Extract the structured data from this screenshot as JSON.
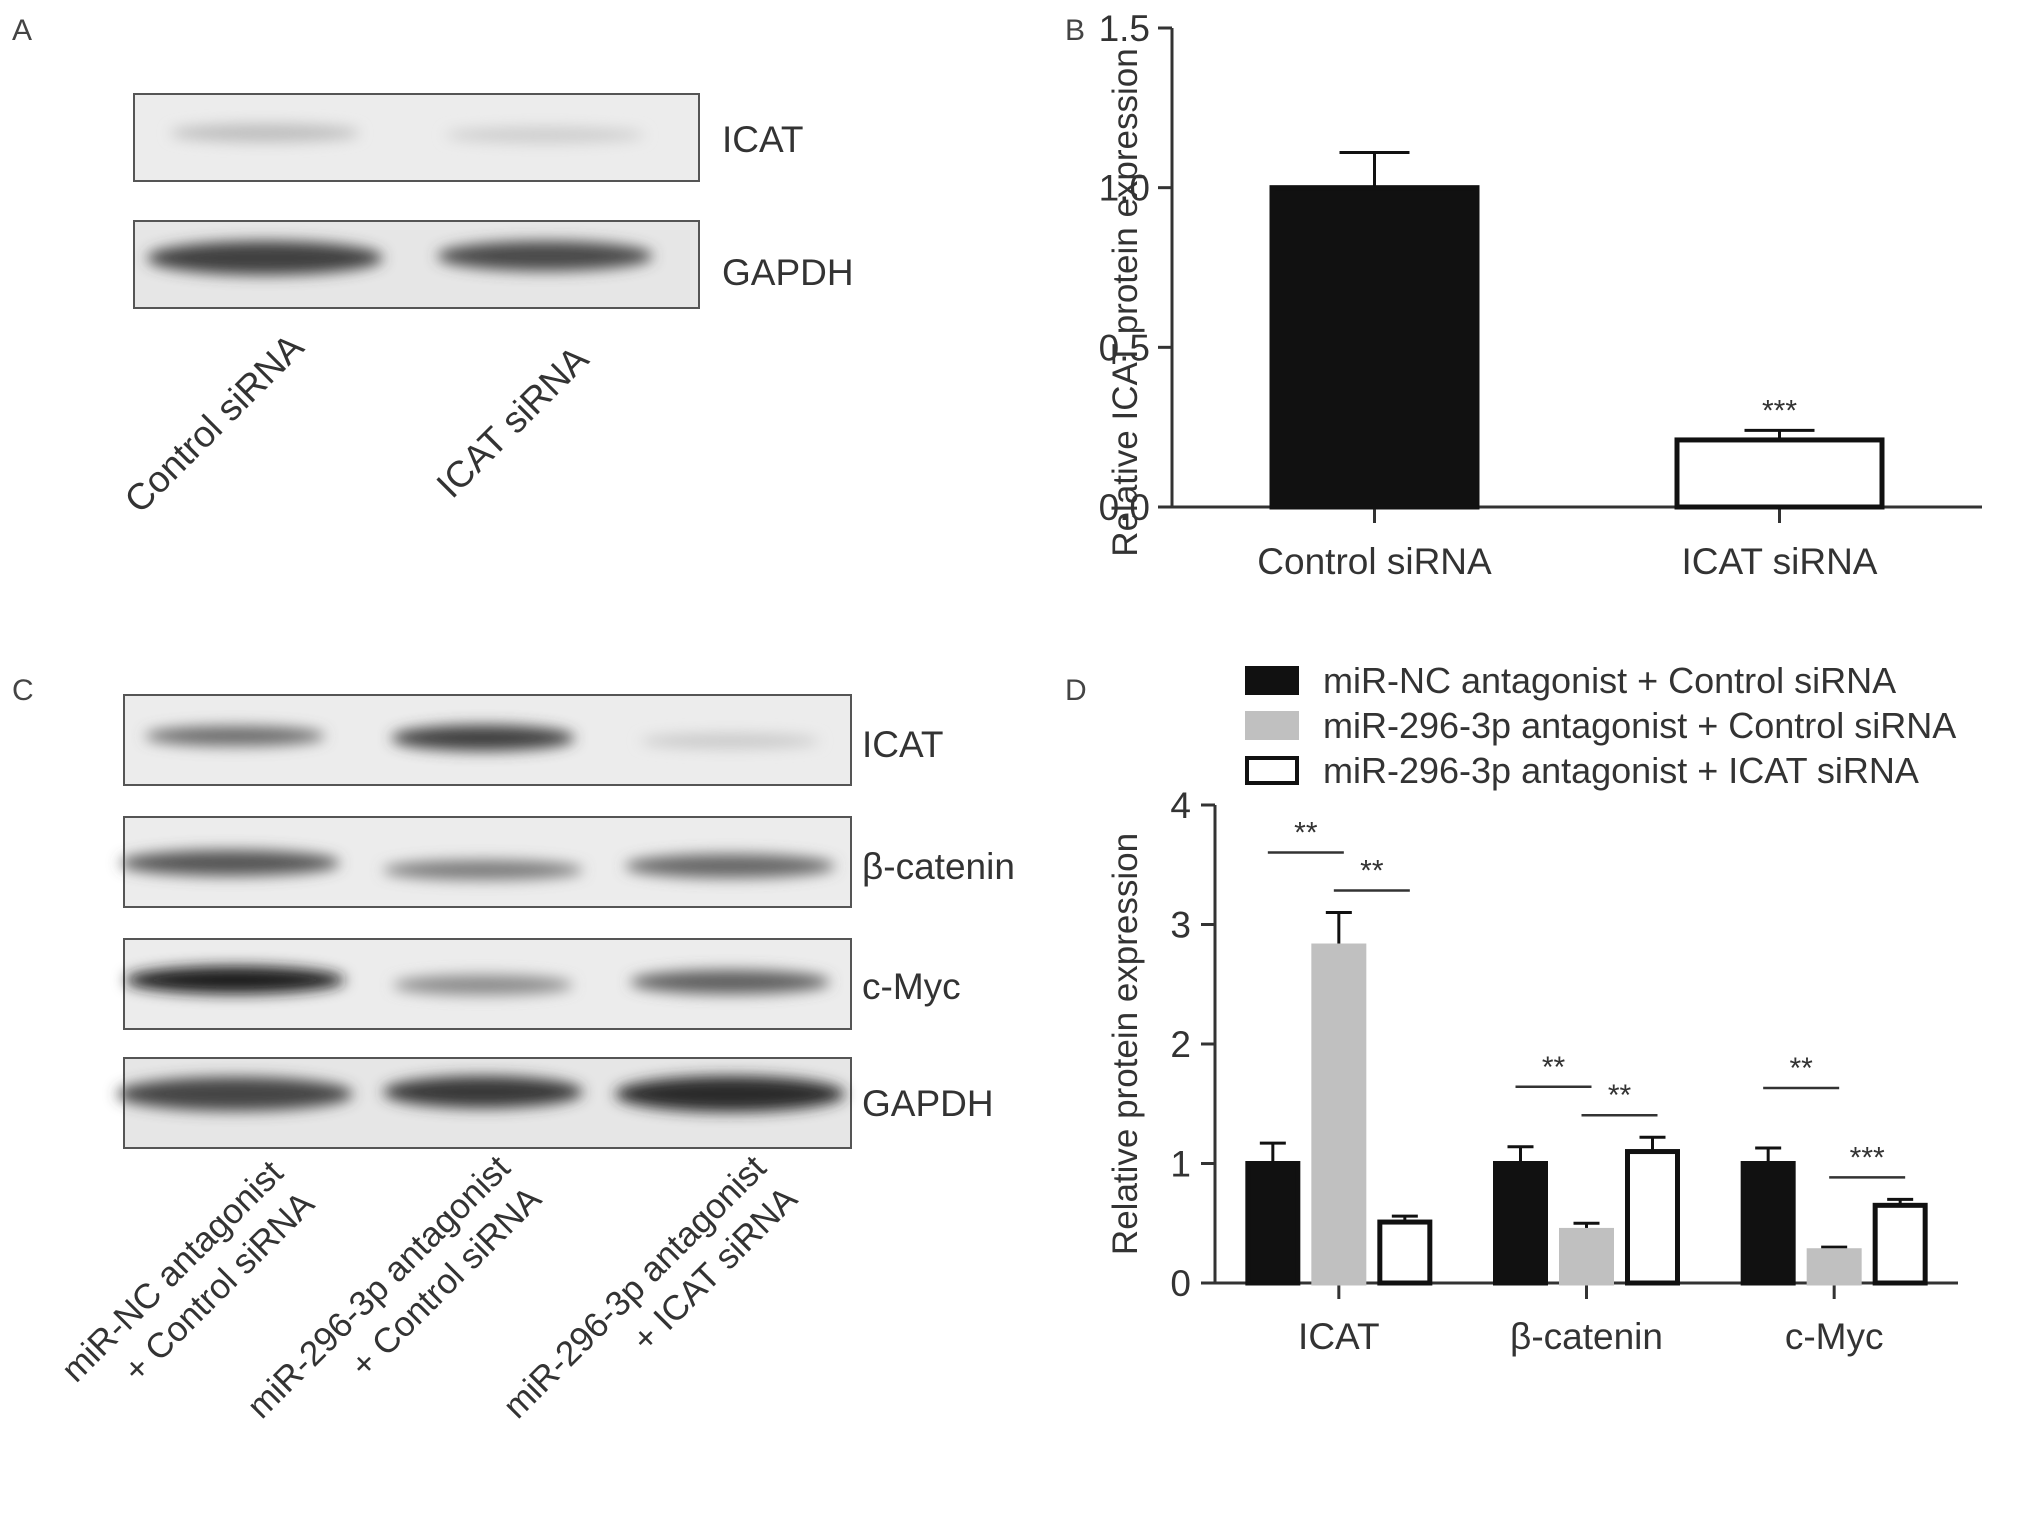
{
  "panels": {
    "A": {
      "letter": "A",
      "bands": [
        "ICAT",
        "GAPDH"
      ],
      "lanes": [
        "Control siRNA",
        "ICAT siRNA"
      ]
    },
    "B": {
      "letter": "B"
    },
    "C": {
      "letter": "C",
      "bands": [
        "ICAT",
        "β-catenin",
        "c-Myc",
        "GAPDH"
      ],
      "lanes": [
        [
          "miR-NC antagonist",
          "+ Control siRNA"
        ],
        [
          "miR-296-3p antagonist",
          "+ Control siRNA"
        ],
        [
          "miR-296-3p antagonist",
          "+ ICAT siRNA"
        ]
      ]
    },
    "D": {
      "letter": "D"
    }
  },
  "colors": {
    "black_bar": "#111111",
    "gray_bar": "#c0c0c0",
    "white_bar": "#ffffff",
    "axis": "#333333"
  },
  "chart_data": [
    {
      "panel": "B",
      "type": "bar",
      "categories": [
        "Control siRNA",
        "ICAT siRNA"
      ],
      "series": [
        {
          "values": [
            1.0,
            0.21
          ],
          "errors": [
            0.11,
            0.03
          ],
          "fills": [
            "#111111",
            "#ffffff"
          ]
        }
      ],
      "ylabel": "Relative ICAT protein expression",
      "ylim": [
        0,
        1.5
      ],
      "yticks": [
        "0.0",
        "0.5",
        "1.0",
        "1.5"
      ],
      "annotations": [
        {
          "category": 1,
          "text": "***"
        }
      ],
      "grid": false
    },
    {
      "panel": "D",
      "type": "bar",
      "categories": [
        "ICAT",
        "β-catenin",
        "c-Myc"
      ],
      "series": [
        {
          "name": "miR-NC antagonist + Control siRNA",
          "values": [
            1.0,
            1.0,
            1.0
          ],
          "errors": [
            0.17,
            0.14,
            0.13
          ],
          "fill": "#111111"
        },
        {
          "name": "miR-296-3p antagonist + Control siRNA",
          "values": [
            2.82,
            0.44,
            0.27
          ],
          "errors": [
            0.28,
            0.06,
            0.03
          ],
          "fill": "#c0c0c0"
        },
        {
          "name": "miR-296-3p antagonist + ICAT siRNA",
          "values": [
            0.51,
            1.1,
            0.65
          ],
          "errors": [
            0.05,
            0.12,
            0.05
          ],
          "fill": "#ffffff"
        }
      ],
      "ylabel": "Relative protein expression",
      "ylim": [
        0,
        4
      ],
      "yticks": [
        "0",
        "1",
        "2",
        "3",
        "4"
      ],
      "legend": "top",
      "grid": false,
      "significance": [
        {
          "category": 0,
          "from": 0,
          "to": 1,
          "text": "**"
        },
        {
          "category": 0,
          "from": 1,
          "to": 2,
          "text": "**"
        },
        {
          "category": 1,
          "from": 0,
          "to": 1,
          "text": "**"
        },
        {
          "category": 1,
          "from": 1,
          "to": 2,
          "text": "**"
        },
        {
          "category": 2,
          "from": 0,
          "to": 1,
          "text": "**"
        },
        {
          "category": 2,
          "from": 1,
          "to": 2,
          "text": "***"
        }
      ]
    }
  ]
}
